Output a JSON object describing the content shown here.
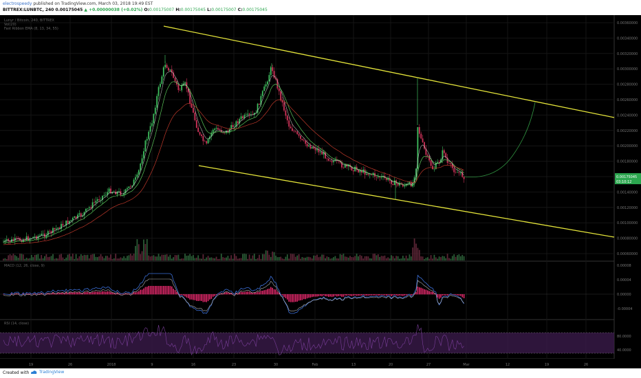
{
  "header": {
    "author": "electrospeedy",
    "published": "published on TradingView.com, March 03, 2018 19:49 EST",
    "symbol": "BITTREX:LUNBTC, 240",
    "last": "0.00175045",
    "change": "▲ +0.00000038 (+0.02%)",
    "o_label": "O:",
    "o_val": "0.00175007",
    "h_label": "H:",
    "h_val": "0.00175045",
    "l_label": "L:",
    "l_val": "0.00175007",
    "c_label": "C:",
    "c_val": "0.00175045"
  },
  "legends": {
    "main_title": "Lunyr / Bitcoin, 240, BITTREX",
    "vol": "Vol(20)",
    "ribbon": "Fast Ribbon EMA (8, 13, 34, 55)",
    "macd": "MACD (12, 26, close, 9)",
    "rsi": "RSI (14, close)"
  },
  "price_axis": {
    "labels": [
      "0.00360000",
      "0.00340000",
      "0.00320000",
      "0.00300000",
      "0.00280000",
      "0.00260000",
      "0.00240000",
      "0.00220000",
      "0.00200000",
      "0.00180000",
      "0.00160000",
      "0.00140000",
      "0.00120000",
      "0.00100000",
      "0.00080000",
      "0.00060000"
    ],
    "current_price": "0.00175045",
    "countdown": "03:10:12"
  },
  "macd_axis": {
    "labels": [
      "0.00008",
      "0.00004",
      "0.00000",
      "-0.00004"
    ]
  },
  "rsi_axis": {
    "labels": [
      "80.0000",
      "40.0000"
    ]
  },
  "time_axis": {
    "labels": [
      "19",
      "26",
      "2018",
      "9",
      "16",
      "23",
      "30",
      "Feb",
      "13",
      "20",
      "27",
      "Mar",
      "12",
      "19",
      "26"
    ]
  },
  "colors": {
    "background": "#000000",
    "grid": "#1a1a1a",
    "up": "#3fbf5f",
    "down": "#d0335a",
    "trendline": "#e5e53a",
    "ema_fast": "#e0e0e0",
    "ema_mid": "#5ac85a",
    "ema_slow": "#c0392b",
    "macd_line": "#3b6fd8",
    "signal_line": "#e0e0e0",
    "macd_hist": "#e0286a",
    "rsi_band": "#3a1a4a",
    "rsi_line": "#7a3e9a",
    "price_tag": "#2ca64f"
  },
  "footer": {
    "created": "Created with",
    "brand": "TradingView"
  }
}
